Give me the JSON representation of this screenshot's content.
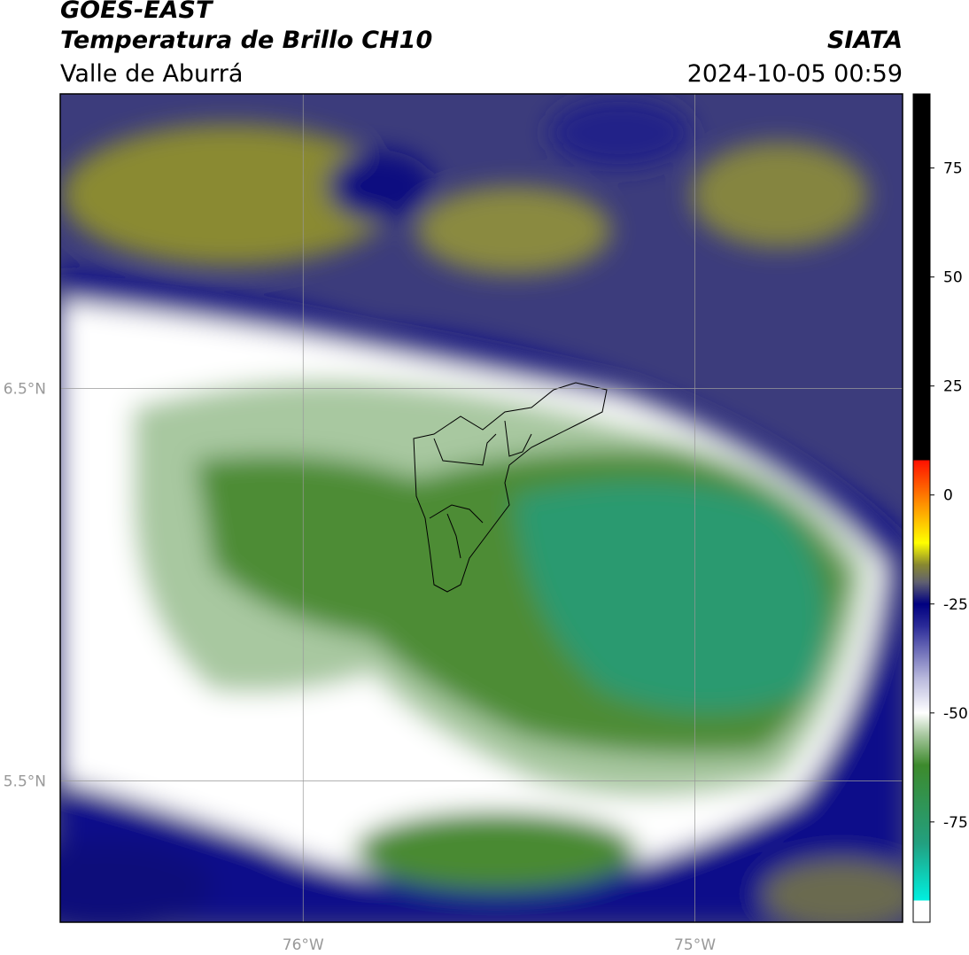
{
  "header": {
    "title": "GOES-EAST",
    "subtitle": "Temperatura de Brillo CH10",
    "region": "Valle de Aburrá",
    "source": "SIATA",
    "datetime": "2024-10-05 00:59"
  },
  "map": {
    "lonlim": [
      -76.62,
      -74.47
    ],
    "latlim": [
      5.14,
      7.25
    ],
    "lonticks": [
      {
        "value": -76,
        "label": "76°W"
      },
      {
        "value": -75,
        "label": "75°W"
      }
    ],
    "latticks": [
      {
        "value": 6.5,
        "label": "6.5°N"
      },
      {
        "value": 5.5,
        "label": "5.5°N"
      }
    ]
  },
  "colorbar": {
    "lim": [
      -98,
      92
    ],
    "ticks": [
      75,
      50,
      25,
      0,
      -25,
      -50,
      -75
    ],
    "colormap": [
      {
        "value": -98,
        "color": "#ffffff"
      },
      {
        "value": -93,
        "color": "#ffffff"
      },
      {
        "value": -93,
        "color": "#00f0e0"
      },
      {
        "value": -80,
        "color": "#22a080"
      },
      {
        "value": -62,
        "color": "#3d8a2c"
      },
      {
        "value": -55,
        "color": "#a8c8a0"
      },
      {
        "value": -50,
        "color": "#ffffff"
      },
      {
        "value": -42,
        "color": "#b8b8dc"
      },
      {
        "value": -30,
        "color": "#2a2a98"
      },
      {
        "value": -25,
        "color": "#000080"
      },
      {
        "value": -20,
        "color": "#606070"
      },
      {
        "value": -16,
        "color": "#888830"
      },
      {
        "value": -11,
        "color": "#ffff00"
      },
      {
        "value": -2,
        "color": "#ff9000"
      },
      {
        "value": 8,
        "color": "#ff1000"
      },
      {
        "value": 8,
        "color": "#000000"
      },
      {
        "value": 92,
        "color": "#000000"
      }
    ]
  }
}
